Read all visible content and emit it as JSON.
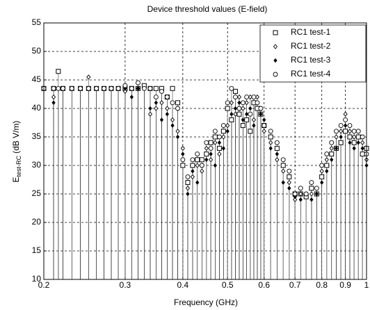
{
  "chart_data": {
    "type": "scatter",
    "title": "Device threshold values (E-field)",
    "xlabel": "Frequency (GHz)",
    "ylabel": "E",
    "ylabel_sub": "test-RC",
    "ylabel_unit": "(dB V/m)",
    "xscale": "log",
    "xlim": [
      0.2,
      1
    ],
    "xticks": [
      0.2,
      0.3,
      0.4,
      0.5,
      0.6,
      0.7,
      0.8,
      0.9,
      1
    ],
    "ylim": [
      10,
      55
    ],
    "yticks": [
      10,
      15,
      20,
      25,
      30,
      35,
      40,
      45,
      50,
      55
    ],
    "grid": true,
    "legend": "upper right",
    "x": [
      0.2,
      0.21,
      0.215,
      0.22,
      0.23,
      0.24,
      0.25,
      0.26,
      0.27,
      0.28,
      0.29,
      0.3,
      0.31,
      0.32,
      0.33,
      0.34,
      0.35,
      0.36,
      0.37,
      0.38,
      0.39,
      0.4,
      0.41,
      0.42,
      0.43,
      0.44,
      0.45,
      0.46,
      0.47,
      0.48,
      0.49,
      0.5,
      0.51,
      0.52,
      0.53,
      0.54,
      0.55,
      0.56,
      0.57,
      0.58,
      0.59,
      0.6,
      0.62,
      0.64,
      0.66,
      0.68,
      0.7,
      0.72,
      0.74,
      0.76,
      0.78,
      0.8,
      0.82,
      0.84,
      0.86,
      0.88,
      0.9,
      0.92,
      0.94,
      0.96,
      0.98,
      1.0
    ],
    "series": [
      {
        "name": "RC1 test-1",
        "marker": "square",
        "color": "#000000",
        "values": [
          43.5,
          43.5,
          46.5,
          43.5,
          43.5,
          43.5,
          43.5,
          43.5,
          43.5,
          43.5,
          43.5,
          43.5,
          43.5,
          43.5,
          44,
          43.5,
          43.5,
          43.5,
          42,
          43.5,
          41,
          30,
          27,
          30,
          31,
          31,
          32,
          34,
          35,
          33,
          36,
          40,
          38,
          43,
          39,
          37,
          38,
          36,
          41,
          40,
          39,
          37,
          35,
          33,
          30,
          28,
          25,
          25,
          24.5,
          26,
          25,
          28,
          30,
          32,
          33,
          34,
          36,
          35,
          34,
          35,
          32,
          33
        ]
      },
      {
        "name": "RC1 test-2",
        "marker": "diamond",
        "color": "#000000",
        "values": [
          43.5,
          42,
          43.5,
          43.5,
          43.5,
          43.5,
          45.5,
          43.5,
          43.5,
          43.5,
          43.5,
          43,
          43.5,
          43.5,
          43.5,
          39,
          40,
          41,
          40,
          38,
          36,
          33,
          26,
          28,
          30,
          29,
          33,
          31,
          34,
          32,
          35,
          37,
          41,
          39,
          42,
          40,
          41,
          42,
          38,
          42,
          40,
          36,
          34,
          31,
          29,
          27,
          24,
          25,
          25,
          25,
          26,
          29,
          31,
          33,
          35,
          36,
          39,
          36,
          35,
          36,
          34,
          31
        ]
      },
      {
        "name": "RC1 test-3",
        "marker": "dot",
        "color": "#000000",
        "values": [
          43.5,
          41,
          43.5,
          43.5,
          43.5,
          43.5,
          43.5,
          43.5,
          43.5,
          43.5,
          43.5,
          43.5,
          42,
          43.5,
          43.5,
          40,
          41,
          38,
          39,
          37,
          35,
          32,
          25,
          29,
          27,
          30,
          31,
          32,
          30,
          34,
          33,
          36,
          39,
          40,
          41,
          38,
          39,
          40,
          37,
          41,
          39,
          38,
          33,
          32,
          27,
          26,
          24.5,
          24,
          25,
          24,
          25,
          27,
          29,
          31,
          33,
          35,
          37,
          34,
          33,
          34,
          33,
          30
        ]
      },
      {
        "name": "RC1 test-4",
        "marker": "circle",
        "color": "#000000",
        "values": [
          43.5,
          43.5,
          43.5,
          43.5,
          43.5,
          43.5,
          43.5,
          43.5,
          43.5,
          43.5,
          43.5,
          44,
          43.5,
          44.5,
          43.5,
          43.5,
          42,
          43,
          42,
          41,
          40,
          31,
          28,
          31,
          32,
          30,
          34,
          33,
          36,
          35,
          37,
          41,
          43.5,
          42,
          40,
          41,
          42,
          39,
          42,
          41,
          40,
          37,
          36,
          34,
          31,
          29,
          25,
          26,
          25,
          27,
          26,
          30,
          32,
          34,
          36,
          37,
          38,
          37,
          36,
          36,
          35,
          32
        ]
      }
    ]
  }
}
